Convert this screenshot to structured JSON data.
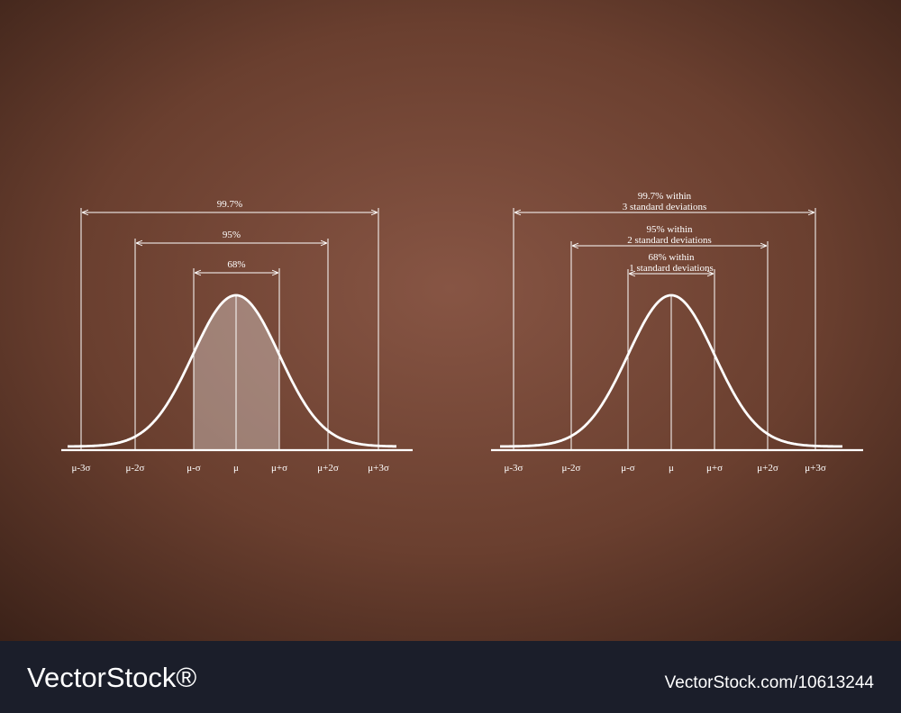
{
  "left": {
    "ranges": [
      "99.7%",
      "95%",
      "68%"
    ],
    "axis_labels": [
      "μ-3σ",
      "μ-2σ",
      "μ-σ",
      "μ",
      "μ+σ",
      "μ+2σ",
      "μ+3σ"
    ]
  },
  "right": {
    "ranges": [
      [
        "99.7% within",
        "3 standard deviations"
      ],
      [
        "95% within",
        "2 standard deviations"
      ],
      [
        "68% within",
        "1 standard deviations"
      ]
    ],
    "axis_labels": [
      "μ-3σ",
      "μ-2σ",
      "μ-σ",
      "μ",
      "μ+σ",
      "μ+2σ",
      "μ+3σ"
    ]
  },
  "footer": {
    "brand": "VectorStock®",
    "url": "VectorStock.com/10613244"
  }
}
